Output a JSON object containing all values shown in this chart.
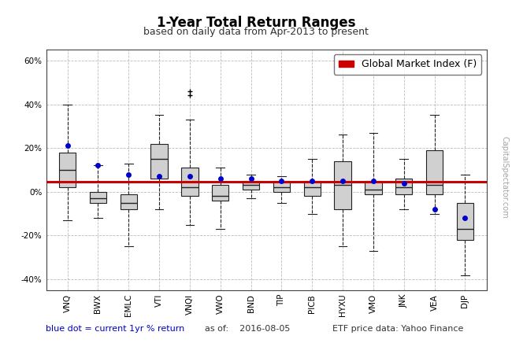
{
  "title": "1-Year Total Return Ranges",
  "subtitle": "based on daily data from Apr-2013 to present",
  "footer_left": "blue dot = current 1yr % return",
  "footer_mid": "as of:    2016-08-05",
  "footer_right": "ETF price data: Yahoo Finance",
  "watermark": "CapitalSpectator.com",
  "legend_label": "Global Market Index (F)",
  "red_line": 4.5,
  "categories": [
    "VNQ",
    "BWX",
    "EMLC",
    "VTI",
    "VNQI",
    "VWO",
    "BND",
    "TIP",
    "PICB",
    "HYXU",
    "VMO",
    "JNK",
    "VEA",
    "DJP"
  ],
  "boxes": [
    {
      "whislo": -13,
      "q1": 2,
      "med": 10,
      "q3": 18,
      "whishi": 40,
      "dot": 21
    },
    {
      "whislo": -12,
      "q1": -5,
      "med": -3,
      "q3": 0,
      "whishi": 12,
      "dot": 12
    },
    {
      "whislo": -25,
      "q1": -8,
      "med": -5,
      "q3": -1,
      "whishi": 13,
      "dot": 8
    },
    {
      "whislo": -8,
      "q1": 6,
      "med": 15,
      "q3": 22,
      "whishi": 35,
      "dot": 7
    },
    {
      "whislo": -15,
      "q1": -2,
      "med": 2,
      "q3": 11,
      "whishi": 33,
      "outliers": [
        44,
        46
      ],
      "dot": 7
    },
    {
      "whislo": -17,
      "q1": -4,
      "med": -2,
      "q3": 3,
      "whishi": 11,
      "dot": 6
    },
    {
      "whislo": -3,
      "q1": 1,
      "med": 3,
      "q3": 5,
      "whishi": 8,
      "dot": 6
    },
    {
      "whislo": -5,
      "q1": 0,
      "med": 2,
      "q3": 5,
      "whishi": 7,
      "dot": 5
    },
    {
      "whislo": -10,
      "q1": -2,
      "med": 2,
      "q3": 5,
      "whishi": 15,
      "dot": 5
    },
    {
      "whislo": -25,
      "q1": -8,
      "med": 3,
      "q3": 14,
      "whishi": 26,
      "dot": 5
    },
    {
      "whislo": -27,
      "q1": -1,
      "med": 1,
      "q3": 5,
      "whishi": 27,
      "dot": 5
    },
    {
      "whislo": -8,
      "q1": -1,
      "med": 2,
      "q3": 6,
      "whishi": 15,
      "dot": 4
    },
    {
      "whislo": -10,
      "q1": -1,
      "med": 3,
      "q3": 19,
      "whishi": 35,
      "dot": -8
    },
    {
      "whislo": -38,
      "q1": -22,
      "med": -17,
      "q3": -5,
      "whishi": 8,
      "dot": -12
    }
  ],
  "ylim": [
    -45,
    65
  ],
  "yticks": [
    -40,
    -20,
    0,
    20,
    40,
    60
  ],
  "ytick_labels": [
    "-40%",
    "-20%",
    "0%",
    "20%",
    "40%",
    "60%"
  ],
  "box_facecolor": "#d0d0d0",
  "box_edgecolor": "#222222",
  "whisker_color": "#222222",
  "median_color": "#222222",
  "dot_color": "#0000cc",
  "red_line_color": "#cc0000",
  "background_color": "#ffffff",
  "grid_color": "#aaaaaa",
  "title_fontsize": 12,
  "subtitle_fontsize": 9,
  "footer_fontsize": 8,
  "tick_fontsize": 7.5,
  "legend_fontsize": 9
}
